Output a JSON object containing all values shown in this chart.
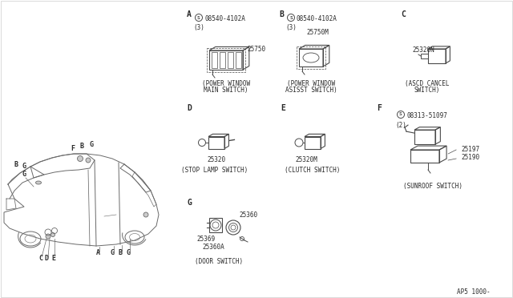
{
  "bg_color": "#ffffff",
  "line_color": "#4a4a4a",
  "text_color": "#2a2a2a",
  "ref_code": "AP5 1000-",
  "car": {
    "color": "#6a6a6a",
    "lw": 0.7
  },
  "sections": {
    "A": {
      "label": "A",
      "screw": "08540-4102A",
      "count": "(3)",
      "part": "25750",
      "cap1": "(POWER WINDOW",
      "cap2": "MAIN SWITCH)"
    },
    "B": {
      "label": "B",
      "screw": "08540-4102A",
      "count": "(3)",
      "part": "25750M",
      "cap1": "(POWER WINDOW",
      "cap2": "ASISST SWITCH)"
    },
    "C": {
      "label": "C",
      "part": "25320N",
      "cap1": "(ASCD CANCEL",
      "cap2": "SWITCH)"
    },
    "D": {
      "label": "D",
      "part": "25320",
      "cap1": "(STOP LAMP SWITCH)"
    },
    "E": {
      "label": "E",
      "part": "25320M",
      "cap1": "(CLUTCH SWITCH)"
    },
    "F": {
      "label": "F",
      "screw": "08313-51097",
      "count": "(2)",
      "part1": "25197",
      "part2": "25190",
      "cap1": "(SUNROOF SWITCH)"
    },
    "G": {
      "label": "G",
      "part1": "25360",
      "part2": "25369",
      "part3": "25360A",
      "cap1": "(DOOR SWITCH)"
    }
  }
}
